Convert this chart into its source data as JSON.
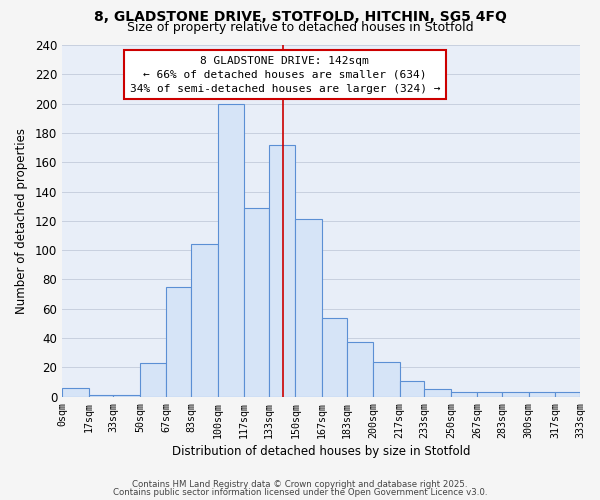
{
  "title": "8, GLADSTONE DRIVE, STOTFOLD, HITCHIN, SG5 4FQ",
  "subtitle": "Size of property relative to detached houses in Stotfold",
  "xlabel": "Distribution of detached houses by size in Stotfold",
  "ylabel": "Number of detached properties",
  "bin_edges": [
    0,
    17,
    33,
    50,
    67,
    83,
    100,
    117,
    133,
    150,
    167,
    183,
    200,
    217,
    233,
    250,
    267,
    283,
    300,
    317,
    333
  ],
  "bar_heights": [
    6,
    1,
    1,
    23,
    75,
    104,
    200,
    129,
    172,
    121,
    54,
    37,
    24,
    11,
    5,
    3,
    3,
    3,
    3,
    3
  ],
  "bar_color": "#d6e4f7",
  "bar_edgecolor": "#5b8fd4",
  "vline_x": 142,
  "vline_color": "#cc0000",
  "annotation_title": "8 GLADSTONE DRIVE: 142sqm",
  "annotation_line1": "← 66% of detached houses are smaller (634)",
  "annotation_line2": "34% of semi-detached houses are larger (324) →",
  "annotation_box_edgecolor": "#cc0000",
  "annotation_box_facecolor": "#ffffff",
  "footnote1": "Contains HM Land Registry data © Crown copyright and database right 2025.",
  "footnote2": "Contains public sector information licensed under the Open Government Licence v3.0.",
  "ylim": [
    0,
    240
  ],
  "yticks": [
    0,
    20,
    40,
    60,
    80,
    100,
    120,
    140,
    160,
    180,
    200,
    220,
    240
  ],
  "plot_bg_color": "#e8eef8",
  "background_color": "#f5f5f5",
  "grid_color": "#c8d0df",
  "title_fontsize": 10,
  "subtitle_fontsize": 9,
  "tick_labels": [
    "0sqm",
    "17sqm",
    "33sqm",
    "50sqm",
    "67sqm",
    "83sqm",
    "100sqm",
    "117sqm",
    "133sqm",
    "150sqm",
    "167sqm",
    "183sqm",
    "200sqm",
    "217sqm",
    "233sqm",
    "250sqm",
    "267sqm",
    "283sqm",
    "300sqm",
    "317sqm",
    "333sqm"
  ]
}
